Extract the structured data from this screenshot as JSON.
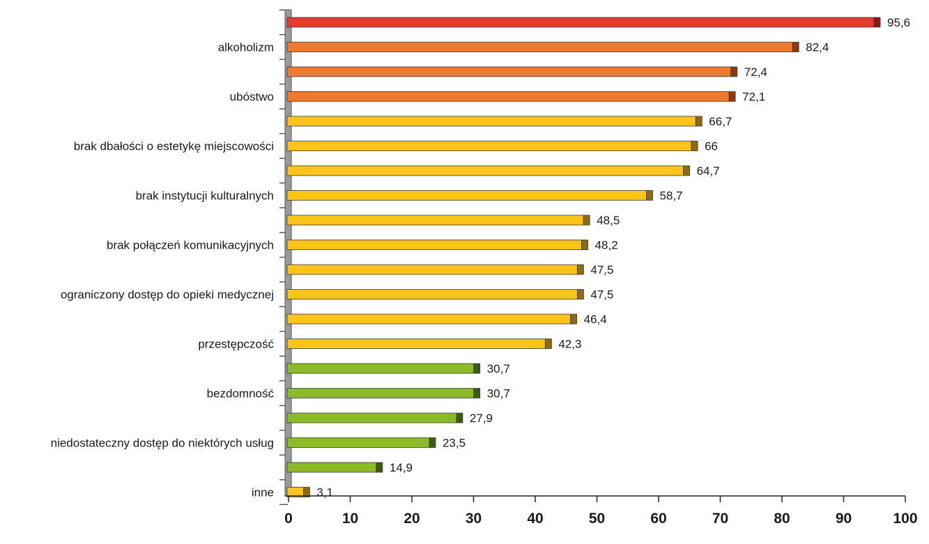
{
  "chart_data": {
    "type": "bar",
    "orientation": "horizontal",
    "title": "",
    "xlabel": "",
    "ylabel": "",
    "xlim": [
      0,
      100
    ],
    "x_ticks": [
      "0",
      "10",
      "20",
      "30",
      "40",
      "50",
      "60",
      "70",
      "80",
      "90",
      "100"
    ],
    "grid": false,
    "legend": "none",
    "bars": [
      {
        "label": "",
        "value": 95.6,
        "value_label": "95,6",
        "color": "#e8392b",
        "edge": "#8b1a12"
      },
      {
        "label": "alkoholizm",
        "value": 82.4,
        "value_label": "82,4",
        "color": "#ee7a30",
        "edge": "#8b3a14"
      },
      {
        "label": "",
        "value": 72.4,
        "value_label": "72,4",
        "color": "#ee7a30",
        "edge": "#8b3a14"
      },
      {
        "label": "ubóstwo",
        "value": 72.1,
        "value_label": "72,1",
        "color": "#ee7a30",
        "edge": "#8b3a14"
      },
      {
        "label": "",
        "value": 66.7,
        "value_label": "66,7",
        "color": "#fcc41a",
        "edge": "#8b6a1a"
      },
      {
        "label": "brak dbałości o estetykę miejscowości",
        "value": 66,
        "value_label": "66",
        "color": "#fcc41a",
        "edge": "#8b6a1a"
      },
      {
        "label": "",
        "value": 64.7,
        "value_label": "64,7",
        "color": "#fcc41a",
        "edge": "#8b6a1a"
      },
      {
        "label": "brak instytucji kulturalnych",
        "value": 58.7,
        "value_label": "58,7",
        "color": "#fcc41a",
        "edge": "#8b6a1a"
      },
      {
        "label": "",
        "value": 48.5,
        "value_label": "48,5",
        "color": "#fcc41a",
        "edge": "#8b6a1a"
      },
      {
        "label": "brak połączeń komunikacyjnych",
        "value": 48.2,
        "value_label": "48,2",
        "color": "#fcc41a",
        "edge": "#8b6a1a"
      },
      {
        "label": "",
        "value": 47.5,
        "value_label": "47,5",
        "color": "#fcc41a",
        "edge": "#8b6a1a"
      },
      {
        "label": "ograniczony dostęp do opieki medycznej",
        "value": 47.5,
        "value_label": "47,5",
        "color": "#fcc41a",
        "edge": "#8b6a1a"
      },
      {
        "label": "",
        "value": 46.4,
        "value_label": "46,4",
        "color": "#fcc41a",
        "edge": "#8b6a1a"
      },
      {
        "label": "przestępczość",
        "value": 42.3,
        "value_label": "42,3",
        "color": "#fcc41a",
        "edge": "#8b6a1a"
      },
      {
        "label": "",
        "value": 30.7,
        "value_label": "30,7",
        "color": "#8cbb2a",
        "edge": "#3f5a18"
      },
      {
        "label": "bezdomność",
        "value": 30.7,
        "value_label": "30,7",
        "color": "#8cbb2a",
        "edge": "#3f5a18"
      },
      {
        "label": "",
        "value": 27.9,
        "value_label": "27,9",
        "color": "#8cbb2a",
        "edge": "#3f5a18"
      },
      {
        "label": "niedostateczny dostęp do niektórych usług",
        "value": 23.5,
        "value_label": "23,5",
        "color": "#8cbb2a",
        "edge": "#3f5a18"
      },
      {
        "label": "",
        "value": 14.9,
        "value_label": "14,9",
        "color": "#8cbb2a",
        "edge": "#3f5a18"
      },
      {
        "label": "inne",
        "value": 3.1,
        "value_label": "3,1",
        "color": "#fcc41a",
        "edge": "#8b6a1a"
      }
    ]
  }
}
